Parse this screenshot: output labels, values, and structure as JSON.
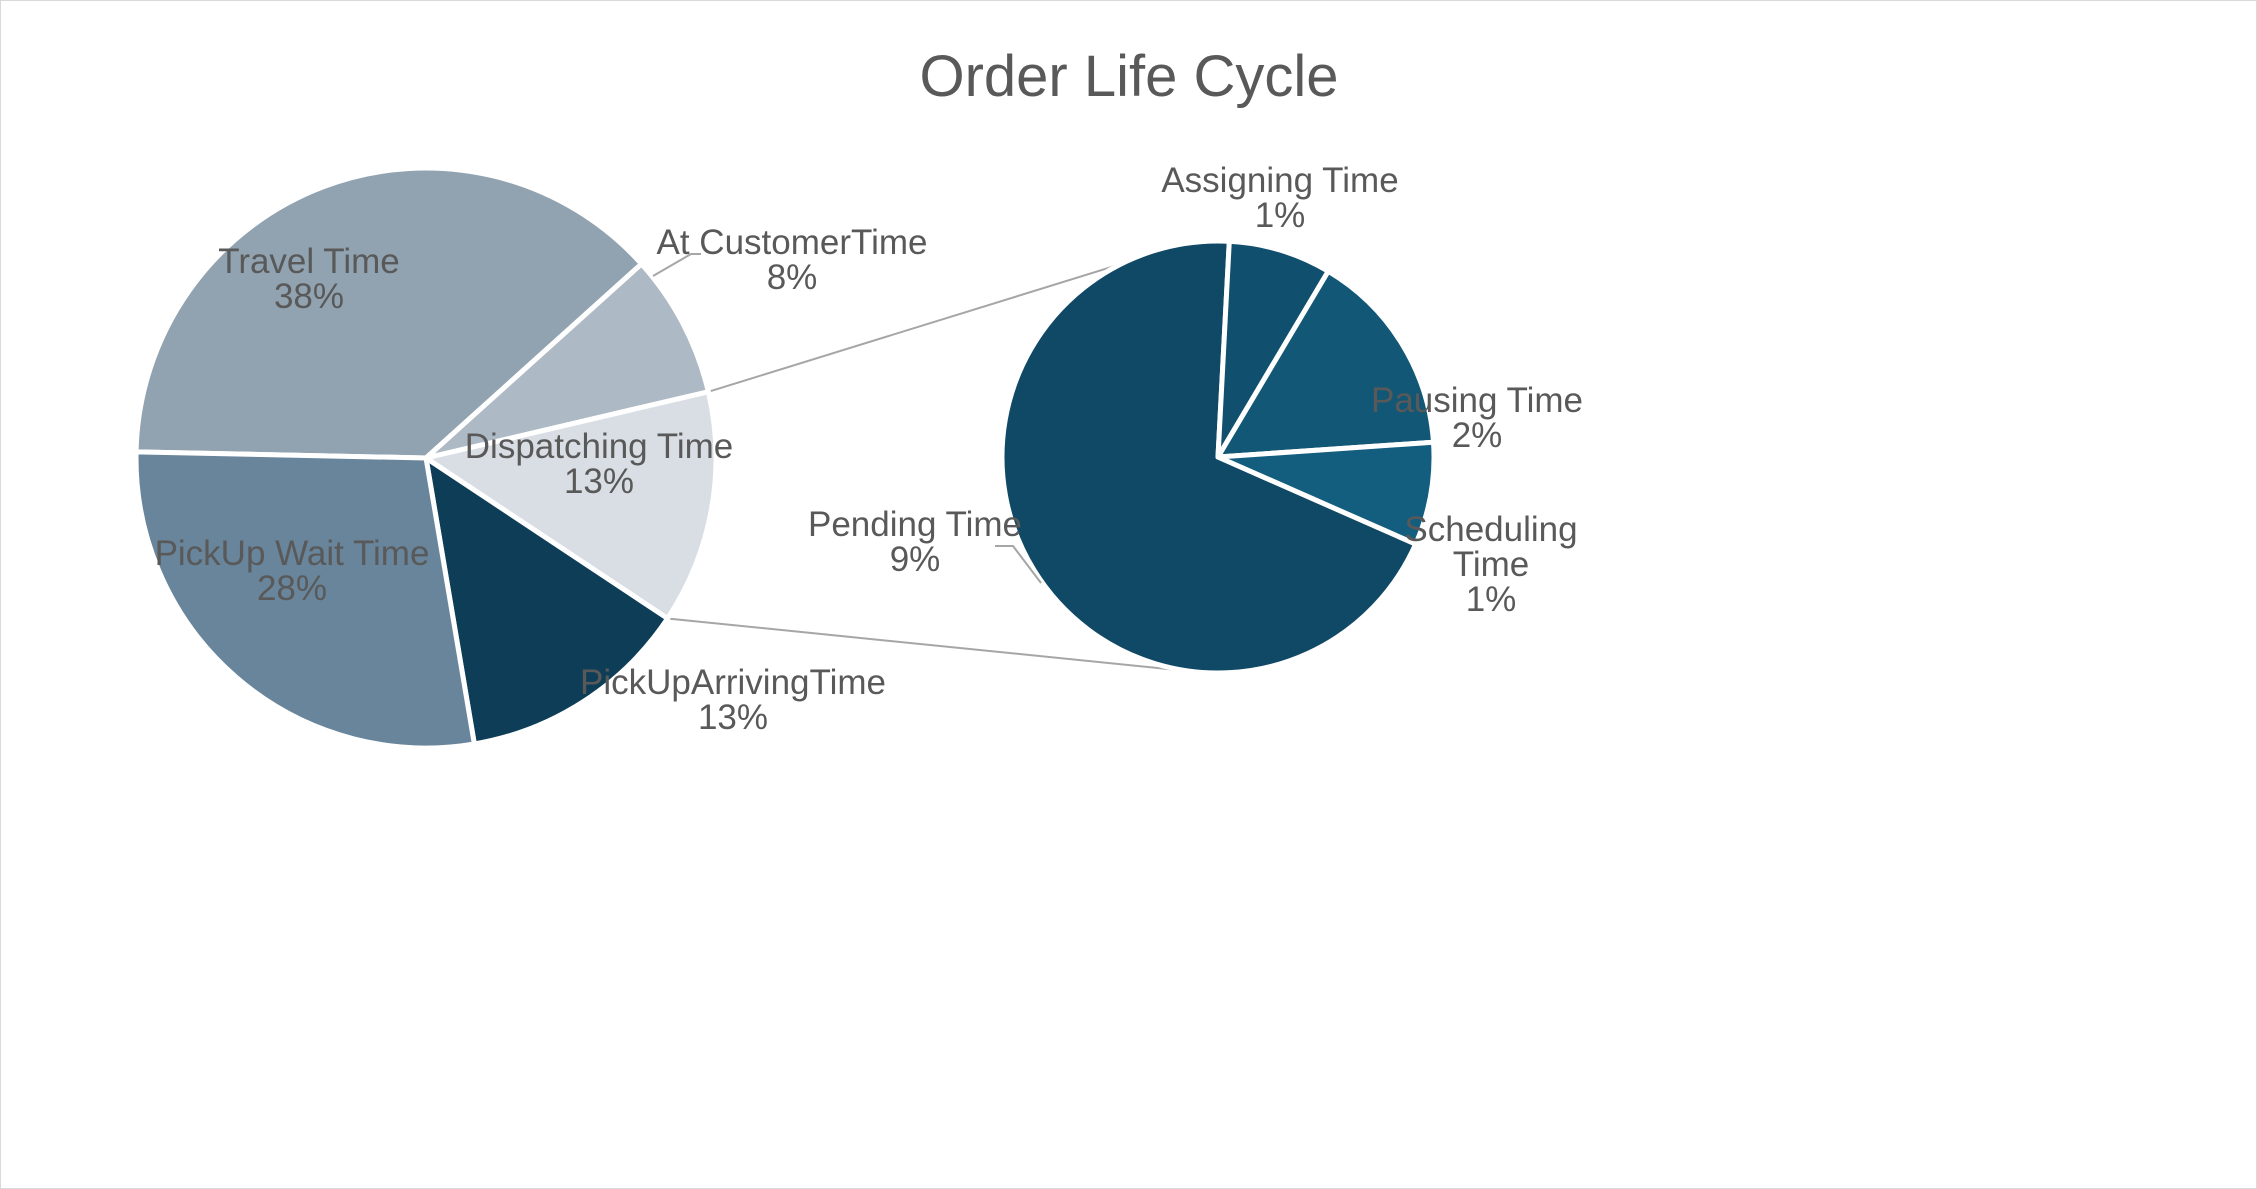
{
  "chart_data": {
    "type": "pie",
    "subtype": "pie-of-pie",
    "title": "Order Life Cycle",
    "main_pie": {
      "slices": [
        {
          "label": "Travel Time",
          "value": 38,
          "percent_label": "38%",
          "color": "#91a3b0",
          "text_color": "#595959"
        },
        {
          "label": "At CustomerTime",
          "value": 8,
          "percent_label": "8%",
          "color": "#adb9c4",
          "text_color": "#595959"
        },
        {
          "label": "Dispatching Time",
          "value": 13,
          "percent_label": "13%",
          "color": "#d8dee3",
          "text_color": "#595959"
        },
        {
          "label": "PickUpArrivingTime",
          "value": 13,
          "percent_label": "13%",
          "color": "#0e3e57",
          "text_color": "#595959"
        },
        {
          "label": "PickUp Wait Time",
          "value": 28,
          "percent_label": "28%",
          "color": "#68859b",
          "text_color": "#595959"
        }
      ]
    },
    "secondary_pie": {
      "source_slice": "Dispatching Time",
      "slices": [
        {
          "label": "Pending Time",
          "value": 9,
          "percent_label": "9%",
          "color": "#104966",
          "text_color": "#595959"
        },
        {
          "label": "Assigning Time",
          "value": 1,
          "percent_label": "1%",
          "color": "#114f6e",
          "text_color": "#595959"
        },
        {
          "label": "Pausing Time",
          "value": 2,
          "percent_label": "2%",
          "color": "#125775",
          "text_color": "#595959"
        },
        {
          "label": "Scheduling Time",
          "value": 1,
          "percent_label": "1%",
          "color": "#135e7f",
          "text_color": "#595959"
        }
      ]
    },
    "colors": {
      "slice_border": "#ffffff",
      "connector_line": "#a6a6a6",
      "title": "#595959",
      "frame_border": "#d9d9d9"
    },
    "legend": "none"
  }
}
